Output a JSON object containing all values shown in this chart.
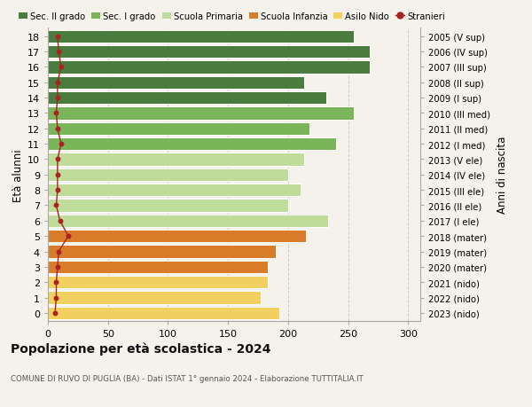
{
  "ages": [
    18,
    17,
    16,
    15,
    14,
    13,
    12,
    11,
    10,
    9,
    8,
    7,
    6,
    5,
    4,
    3,
    2,
    1,
    0
  ],
  "right_labels": [
    "2005 (V sup)",
    "2006 (IV sup)",
    "2007 (III sup)",
    "2008 (II sup)",
    "2009 (I sup)",
    "2010 (III med)",
    "2011 (II med)",
    "2012 (I med)",
    "2013 (V ele)",
    "2014 (IV ele)",
    "2015 (III ele)",
    "2016 (II ele)",
    "2017 (I ele)",
    "2018 (mater)",
    "2019 (mater)",
    "2020 (mater)",
    "2021 (nido)",
    "2022 (nido)",
    "2023 (nido)"
  ],
  "bar_values": [
    255,
    268,
    268,
    213,
    232,
    255,
    218,
    240,
    213,
    200,
    210,
    200,
    233,
    215,
    190,
    183,
    183,
    177,
    193
  ],
  "bar_colors": [
    "#4a7c3f",
    "#4a7c3f",
    "#4a7c3f",
    "#4a7c3f",
    "#4a7c3f",
    "#7ab55a",
    "#7ab55a",
    "#7ab55a",
    "#c0dc9a",
    "#c0dc9a",
    "#c0dc9a",
    "#c0dc9a",
    "#c0dc9a",
    "#d97c2a",
    "#d97c2a",
    "#d97c2a",
    "#f2d060",
    "#f2d060",
    "#f2d060"
  ],
  "stranieri_values": [
    8,
    9,
    11,
    8,
    8,
    7,
    8,
    11,
    8,
    8,
    8,
    7,
    10,
    17,
    9,
    8,
    7,
    7,
    6
  ],
  "title": "Popolazione per età scolastica - 2024",
  "subtitle": "COMUNE DI RUVO DI PUGLIA (BA) - Dati ISTAT 1° gennaio 2024 - Elaborazione TUTTITALIA.IT",
  "ylabel": "Età alunni",
  "right_ylabel": "Anni di nascita",
  "xticks": [
    0,
    50,
    100,
    150,
    200,
    250,
    300
  ],
  "legend_labels": [
    "Sec. II grado",
    "Sec. I grado",
    "Scuola Primaria",
    "Scuola Infanzia",
    "Asilo Nido",
    "Stranieri"
  ],
  "legend_colors": [
    "#4a7c3f",
    "#7ab55a",
    "#c0dc9a",
    "#d97c2a",
    "#f2d060",
    "#aa2222"
  ],
  "bg_color": "#f5f2ec",
  "grid_color": "#cccccc",
  "stranieri_color": "#aa2222"
}
